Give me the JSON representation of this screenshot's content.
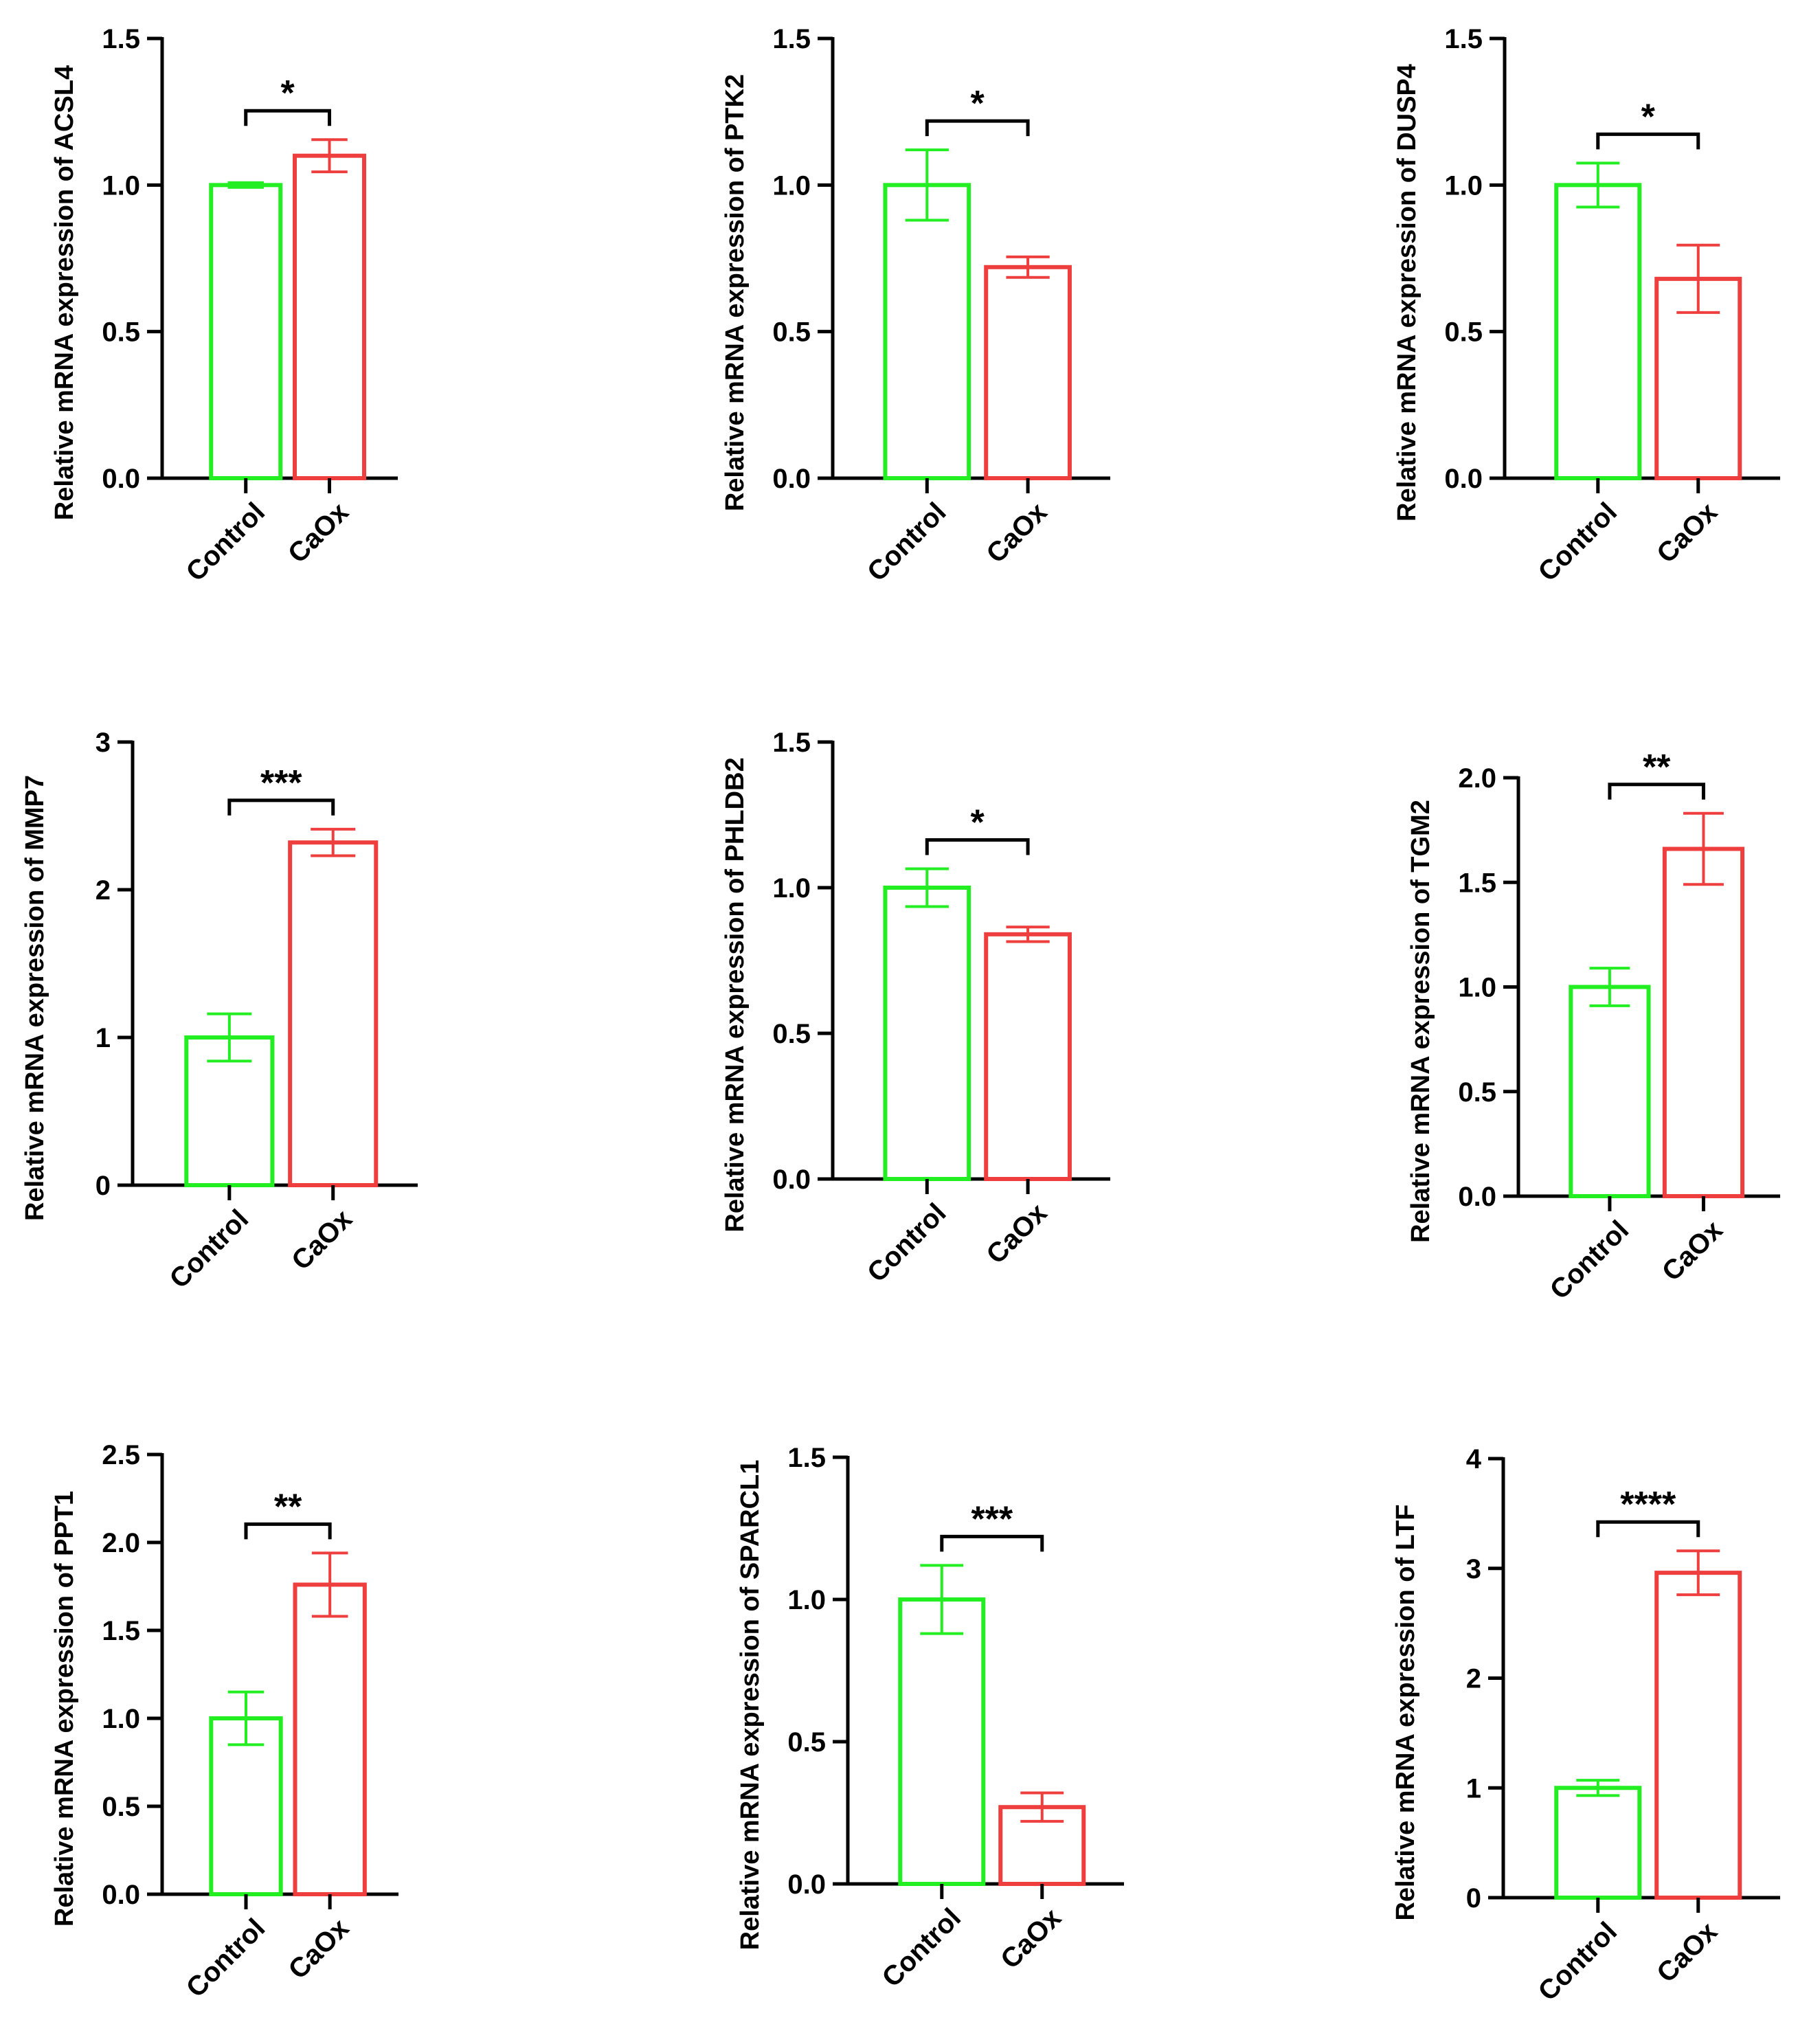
{
  "colors": {
    "control": "#22ee22",
    "caox": "#ee3e3e",
    "axis": "#000000"
  },
  "chart_data": [
    {
      "type": "bar",
      "title": "",
      "xlabel": "",
      "ylabel": "Relative mRNA expression of ACSL4",
      "categories": [
        "Control",
        "CaOx"
      ],
      "values": [
        1.0,
        1.1
      ],
      "errors": [
        0.008,
        0.055
      ],
      "ylim": [
        0,
        1.5
      ],
      "yticks": [
        "0.0",
        "0.5",
        "1.0",
        "1.5"
      ],
      "significance": "*"
    },
    {
      "type": "bar",
      "title": "",
      "xlabel": "",
      "ylabel": "Relative mRNA expression of PTK2",
      "categories": [
        "Control",
        "CaOx"
      ],
      "values": [
        1.0,
        0.72
      ],
      "errors": [
        0.12,
        0.035
      ],
      "ylim": [
        0,
        1.5
      ],
      "yticks": [
        "0.0",
        "0.5",
        "1.0",
        "1.5"
      ],
      "significance": "*"
    },
    {
      "type": "bar",
      "title": "",
      "xlabel": "",
      "ylabel": "Relative mRNA expression of DUSP4",
      "categories": [
        "Control",
        "CaOx"
      ],
      "values": [
        1.0,
        0.68
      ],
      "errors": [
        0.075,
        0.115
      ],
      "ylim": [
        0,
        1.5
      ],
      "yticks": [
        "0.0",
        "0.5",
        "1.0",
        "1.5"
      ],
      "significance": "*"
    },
    {
      "type": "bar",
      "title": "",
      "xlabel": "",
      "ylabel": "Relative mRNA expression of MMP7",
      "categories": [
        "Control",
        "CaOx"
      ],
      "values": [
        1.0,
        2.32
      ],
      "errors": [
        0.16,
        0.09
      ],
      "ylim": [
        0,
        3
      ],
      "yticks": [
        "0",
        "1",
        "2",
        "3"
      ],
      "significance": "***"
    },
    {
      "type": "bar",
      "title": "",
      "xlabel": "",
      "ylabel": "Relative mRNA expression of PHLDB2",
      "categories": [
        "Control",
        "CaOx"
      ],
      "values": [
        1.0,
        0.84
      ],
      "errors": [
        0.065,
        0.025
      ],
      "ylim": [
        0,
        1.5
      ],
      "yticks": [
        "0.0",
        "0.5",
        "1.0",
        "1.5"
      ],
      "significance": "*"
    },
    {
      "type": "bar",
      "title": "",
      "xlabel": "",
      "ylabel": "Relative mRNA expression of TGM2",
      "categories": [
        "Control",
        "CaOx"
      ],
      "values": [
        1.0,
        1.66
      ],
      "errors": [
        0.09,
        0.17
      ],
      "ylim": [
        0,
        2.0
      ],
      "yticks": [
        "0.0",
        "0.5",
        "1.0",
        "1.5",
        "2.0"
      ],
      "significance": "**"
    },
    {
      "type": "bar",
      "title": "",
      "xlabel": "",
      "ylabel": "Relative mRNA expression of PPT1",
      "categories": [
        "Control",
        "CaOx"
      ],
      "values": [
        1.0,
        1.76
      ],
      "errors": [
        0.15,
        0.18
      ],
      "ylim": [
        0,
        2.5
      ],
      "yticks": [
        "0.0",
        "0.5",
        "1.0",
        "1.5",
        "2.0",
        "2.5"
      ],
      "significance": "**"
    },
    {
      "type": "bar",
      "title": "",
      "xlabel": "",
      "ylabel": "Relative mRNA expression of SPARCL1",
      "categories": [
        "Control",
        "CaOx"
      ],
      "values": [
        1.0,
        0.27
      ],
      "errors": [
        0.12,
        0.05
      ],
      "ylim": [
        0,
        1.5
      ],
      "yticks": [
        "0.0",
        "0.5",
        "1.0",
        "1.5"
      ],
      "significance": "***"
    },
    {
      "type": "bar",
      "title": "",
      "xlabel": "",
      "ylabel": "Relative mRNA expression of LTF",
      "categories": [
        "Control",
        "CaOx"
      ],
      "values": [
        1.0,
        2.96
      ],
      "errors": [
        0.07,
        0.2
      ],
      "ylim": [
        0,
        4
      ],
      "yticks": [
        "0",
        "1",
        "2",
        "3",
        "4"
      ],
      "significance": "****"
    }
  ]
}
